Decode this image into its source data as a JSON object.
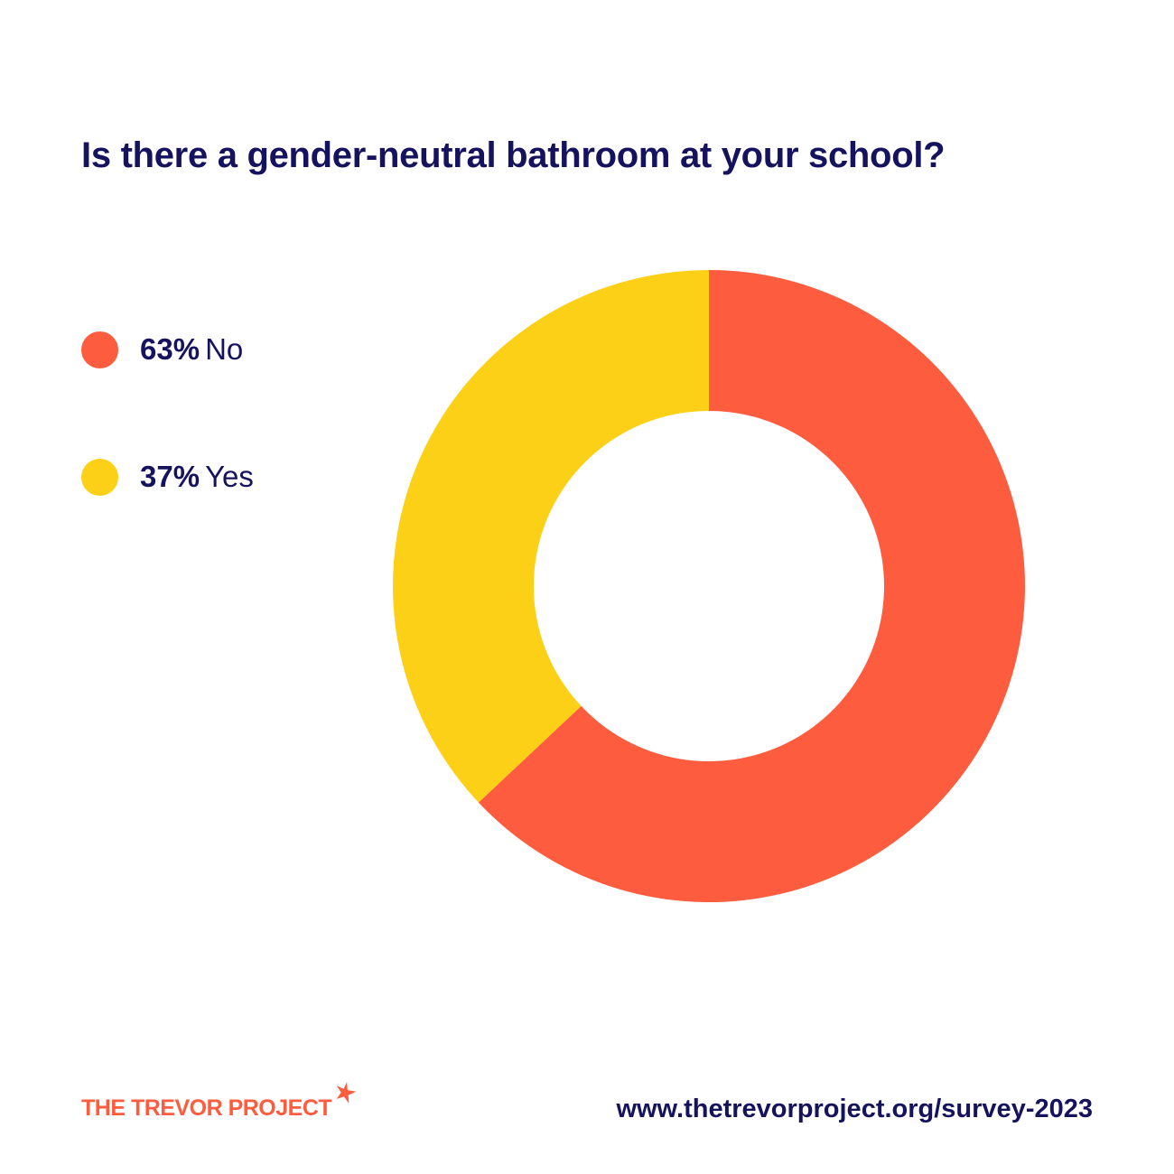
{
  "title": "Is there a gender-neutral bathroom at your school?",
  "colors": {
    "no": "#fe5c3f",
    "yes": "#fdd018",
    "text": "#16135e",
    "logo": "#fe5c3f"
  },
  "legend": [
    {
      "percent_label": "63%",
      "label": "No",
      "color": "#fe5c3f"
    },
    {
      "percent_label": "37%",
      "label": "Yes",
      "color": "#fdd018"
    }
  ],
  "chart_data": {
    "type": "pie",
    "variant": "donut",
    "categories": [
      "No",
      "Yes"
    ],
    "values": [
      63,
      37
    ],
    "colors": [
      "#fe5c3f",
      "#fdd018"
    ],
    "legend_placement": "left"
  },
  "footer": {
    "logo_text": "THE TREVOR PROJECT",
    "logo_icon": "star-icon",
    "url": "www.thetrevorproject.org/survey-2023"
  }
}
